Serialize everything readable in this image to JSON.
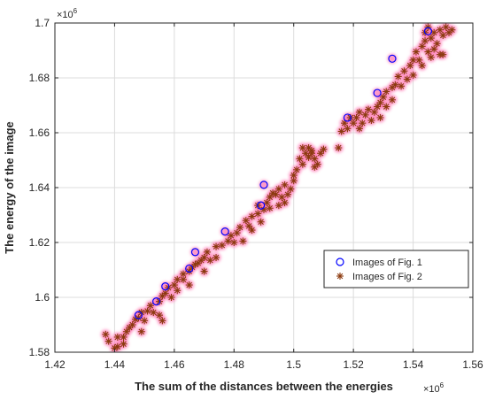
{
  "chart_data": {
    "type": "scatter",
    "xlabel": "The sum of the distances between the energies",
    "ylabel": "The energy of the image",
    "x_exponent": "×10",
    "x_exponent_power": "6",
    "y_exponent": "×10",
    "y_exponent_power": "6",
    "xlim": [
      1.42,
      1.56
    ],
    "ylim": [
      1.58,
      1.7
    ],
    "xticks": [
      "1.42",
      "1.44",
      "1.46",
      "1.48",
      "1.5",
      "1.52",
      "1.54",
      "1.56"
    ],
    "yticks": [
      "1.58",
      "1.6",
      "1.62",
      "1.64",
      "1.66",
      "1.68",
      "1.7"
    ],
    "grid": true,
    "legend_position": "bottom-right",
    "colors": {
      "series1": "#0000ff",
      "series2": "#8b3a0e",
      "halo": "#ff77b4",
      "grid": "#dcdcdc",
      "axis": "#262626"
    },
    "series": [
      {
        "name": "Images of Fig. 1",
        "marker": "circle",
        "points": [
          [
            1.448,
            1.5935
          ],
          [
            1.454,
            1.5985
          ],
          [
            1.457,
            1.604
          ],
          [
            1.465,
            1.6105
          ],
          [
            1.467,
            1.6165
          ],
          [
            1.477,
            1.624
          ],
          [
            1.489,
            1.6335
          ],
          [
            1.49,
            1.641
          ],
          [
            1.518,
            1.6655
          ],
          [
            1.528,
            1.6745
          ],
          [
            1.533,
            1.687
          ],
          [
            1.545,
            1.697
          ]
        ]
      },
      {
        "name": "Images of Fig. 2",
        "marker": "asterisk",
        "points": [
          [
            1.437,
            1.5865
          ],
          [
            1.438,
            1.584
          ],
          [
            1.441,
            1.582
          ],
          [
            1.443,
            1.583
          ],
          [
            1.441,
            1.5855
          ],
          [
            1.44,
            1.5815
          ],
          [
            1.444,
            1.5875
          ],
          [
            1.445,
            1.589
          ],
          [
            1.443,
            1.5855
          ],
          [
            1.447,
            1.592
          ],
          [
            1.448,
            1.5925
          ],
          [
            1.446,
            1.59
          ],
          [
            1.449,
            1.5945
          ],
          [
            1.45,
            1.5915
          ],
          [
            1.449,
            1.5875
          ],
          [
            1.451,
            1.595
          ],
          [
            1.452,
            1.597
          ],
          [
            1.453,
            1.5945
          ],
          [
            1.455,
            1.5985
          ],
          [
            1.456,
            1.6005
          ],
          [
            1.455,
            1.5935
          ],
          [
            1.456,
            1.5915
          ],
          [
            1.457,
            1.6015
          ],
          [
            1.458,
            1.6035
          ],
          [
            1.46,
            1.6045
          ],
          [
            1.461,
            1.6065
          ],
          [
            1.459,
            1.6
          ],
          [
            1.461,
            1.6025
          ],
          [
            1.463,
            1.6065
          ],
          [
            1.463,
            1.6085
          ],
          [
            1.465,
            1.6095
          ],
          [
            1.466,
            1.611
          ],
          [
            1.465,
            1.6045
          ],
          [
            1.467,
            1.612
          ],
          [
            1.468,
            1.6125
          ],
          [
            1.469,
            1.6135
          ],
          [
            1.47,
            1.6145
          ],
          [
            1.47,
            1.6095
          ],
          [
            1.471,
            1.6165
          ],
          [
            1.472,
            1.6135
          ],
          [
            1.474,
            1.6185
          ],
          [
            1.474,
            1.6145
          ],
          [
            1.476,
            1.619
          ],
          [
            1.478,
            1.6205
          ],
          [
            1.479,
            1.6225
          ],
          [
            1.48,
            1.62
          ],
          [
            1.481,
            1.6235
          ],
          [
            1.482,
            1.6255
          ],
          [
            1.483,
            1.6205
          ],
          [
            1.484,
            1.628
          ],
          [
            1.485,
            1.626
          ],
          [
            1.486,
            1.6295
          ],
          [
            1.486,
            1.6245
          ],
          [
            1.488,
            1.6305
          ],
          [
            1.488,
            1.6335
          ],
          [
            1.489,
            1.6275
          ],
          [
            1.49,
            1.632
          ],
          [
            1.491,
            1.6345
          ],
          [
            1.492,
            1.6365
          ],
          [
            1.493,
            1.638
          ],
          [
            1.492,
            1.6325
          ],
          [
            1.494,
            1.6375
          ],
          [
            1.495,
            1.6335
          ],
          [
            1.495,
            1.6395
          ],
          [
            1.496,
            1.6365
          ],
          [
            1.497,
            1.641
          ],
          [
            1.497,
            1.6345
          ],
          [
            1.498,
            1.6375
          ],
          [
            1.499,
            1.6395
          ],
          [
            1.5,
            1.6425
          ],
          [
            1.5,
            1.6445
          ],
          [
            1.501,
            1.6465
          ],
          [
            1.502,
            1.6505
          ],
          [
            1.503,
            1.6485
          ],
          [
            1.503,
            1.6545
          ],
          [
            1.504,
            1.6525
          ],
          [
            1.505,
            1.651
          ],
          [
            1.506,
            1.6525
          ],
          [
            1.507,
            1.6505
          ],
          [
            1.508,
            1.6485
          ],
          [
            1.509,
            1.6525
          ],
          [
            1.51,
            1.654
          ],
          [
            1.506,
            1.6535
          ],
          [
            1.505,
            1.6545
          ],
          [
            1.507,
            1.6475
          ],
          [
            1.515,
            1.6545
          ],
          [
            1.516,
            1.6605
          ],
          [
            1.517,
            1.6635
          ],
          [
            1.518,
            1.6615
          ],
          [
            1.519,
            1.6655
          ],
          [
            1.52,
            1.6635
          ],
          [
            1.521,
            1.6655
          ],
          [
            1.522,
            1.6675
          ],
          [
            1.522,
            1.6615
          ],
          [
            1.523,
            1.6635
          ],
          [
            1.524,
            1.6665
          ],
          [
            1.525,
            1.6685
          ],
          [
            1.526,
            1.6645
          ],
          [
            1.527,
            1.6675
          ],
          [
            1.528,
            1.6695
          ],
          [
            1.529,
            1.671
          ],
          [
            1.529,
            1.6655
          ],
          [
            1.53,
            1.673
          ],
          [
            1.531,
            1.675
          ],
          [
            1.531,
            1.6695
          ],
          [
            1.533,
            1.6765
          ],
          [
            1.533,
            1.672
          ],
          [
            1.534,
            1.6775
          ],
          [
            1.535,
            1.6805
          ],
          [
            1.536,
            1.677
          ],
          [
            1.537,
            1.6825
          ],
          [
            1.538,
            1.6795
          ],
          [
            1.539,
            1.6845
          ],
          [
            1.54,
            1.6865
          ],
          [
            1.54,
            1.681
          ],
          [
            1.541,
            1.6895
          ],
          [
            1.542,
            1.6865
          ],
          [
            1.543,
            1.6915
          ],
          [
            1.543,
            1.6845
          ],
          [
            1.544,
            1.6935
          ],
          [
            1.545,
            1.6895
          ],
          [
            1.546,
            1.6945
          ],
          [
            1.546,
            1.6875
          ],
          [
            1.547,
            1.6965
          ],
          [
            1.548,
            1.6925
          ],
          [
            1.549,
            1.6975
          ],
          [
            1.549,
            1.6885
          ],
          [
            1.55,
            1.6955
          ],
          [
            1.551,
            1.6985
          ],
          [
            1.552,
            1.6965
          ],
          [
            1.55,
            1.6885
          ],
          [
            1.547,
            1.6905
          ],
          [
            1.553,
            1.6975
          ],
          [
            1.544,
            1.6965
          ],
          [
            1.545,
            1.6985
          ]
        ]
      }
    ]
  }
}
